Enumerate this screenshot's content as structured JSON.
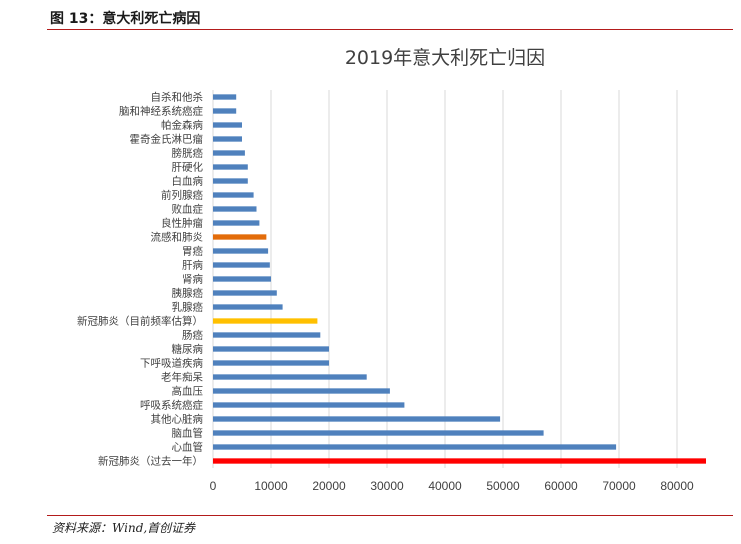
{
  "figure": {
    "caption": "图 13：意大利死亡病因",
    "source": "资料来源：Wind,首创证券"
  },
  "chart_data": {
    "type": "bar",
    "orientation": "horizontal",
    "title": "2019年意大利死亡归因",
    "xlabel": "",
    "ylabel": "",
    "xlim": [
      0,
      85000
    ],
    "xticks": [
      0,
      10000,
      20000,
      30000,
      40000,
      50000,
      60000,
      70000,
      80000
    ],
    "grid": true,
    "legend": "none",
    "categories": [
      "自杀和他杀",
      "脑和神经系统癌症",
      "帕金森病",
      "霍奇金氏淋巴瘤",
      "膀胱癌",
      "肝硬化",
      "白血病",
      "前列腺癌",
      "败血症",
      "良性肿瘤",
      "流感和肺炎",
      "胃癌",
      "肝病",
      "肾病",
      "胰腺癌",
      "乳腺癌",
      "新冠肺炎（目前频率估算）",
      "肠癌",
      "糖尿病",
      "下呼吸道疾病",
      "老年痴呆",
      "高血压",
      "呼吸系统癌症",
      "其他心脏病",
      "脑血管",
      "心血管",
      "新冠肺炎（过去一年）"
    ],
    "values": [
      4000,
      4000,
      5000,
      5000,
      5500,
      6000,
      6000,
      7000,
      7500,
      8000,
      9200,
      9500,
      9800,
      10000,
      11000,
      12000,
      18000,
      18500,
      20000,
      20000,
      26500,
      30500,
      33000,
      49500,
      57000,
      69500,
      85000
    ],
    "colors": {
      "default": "#4f81bd",
      "highlight_flu": "#e36c0a",
      "highlight_covid_estimate": "#ffc000",
      "highlight_covid_year": "#ff0000"
    },
    "bar_colors": [
      "default",
      "default",
      "default",
      "default",
      "default",
      "default",
      "default",
      "default",
      "default",
      "default",
      "highlight_flu",
      "default",
      "default",
      "default",
      "default",
      "default",
      "highlight_covid_estimate",
      "default",
      "default",
      "default",
      "default",
      "default",
      "default",
      "default",
      "default",
      "default",
      "highlight_covid_year"
    ]
  }
}
